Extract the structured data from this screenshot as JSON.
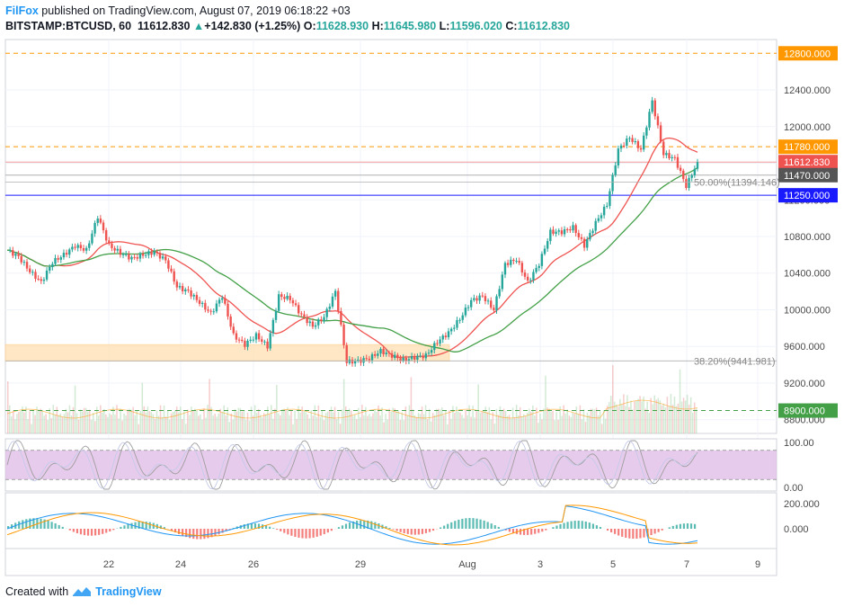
{
  "header": {
    "author": "FilFox",
    "published_text": "published on TradingView.com, August 07, 2019 06:18:22 +03",
    "symbol": "BITSTAMP:BTCUSD, 60",
    "last": "11612.830",
    "change_icon": "up-triangle-icon",
    "change": "+142.830 (+1.25%)",
    "o_label": "O:",
    "o": "11628.930",
    "h_label": "H:",
    "h": "11645.980",
    "l_label": "L:",
    "l": "11596.020",
    "c_label": "C:",
    "c": "11612.830"
  },
  "footer": {
    "created_with": "Created with",
    "brand": "TradingView",
    "logo_icon": "tradingview-logo-icon"
  },
  "colors": {
    "up": "#26a69a",
    "down": "#ef5350",
    "ma_fast": "#ef5350",
    "ma_slow": "#43a047",
    "resistance": "#ff9800",
    "support": "#43a047",
    "blue_line": "#3f51b5",
    "zone": "#ffe0b2",
    "stoch_band": "#e1bee7",
    "macd_line": "#2196f3",
    "signal_line": "#ff9800"
  },
  "chart_data": {
    "type": "candlestick",
    "price_axis": {
      "ylim": [
        8650,
        12950
      ],
      "ticks": [
        "12400.000",
        "12000.000",
        "11600.000",
        "11200.000",
        "10800.000",
        "10400.000",
        "10000.000",
        "9600.000",
        "9200.000",
        "8800.000"
      ]
    },
    "x_axis": {
      "tick_labels": [
        "22",
        "24",
        "26",
        "29",
        "Aug",
        "3",
        "5",
        "7",
        "9"
      ]
    },
    "price_labels": [
      {
        "text": "12800.000",
        "value": 12800,
        "color": "#ff9800"
      },
      {
        "text": "11780.000",
        "value": 11780,
        "color": "#ff9800"
      },
      {
        "text": "11612.830",
        "value": 11612.83,
        "color": "#ef5350"
      },
      {
        "text": "11470.000",
        "value": 11470,
        "color": "#555555"
      },
      {
        "text": "11250.000",
        "value": 11250,
        "color": "#1a1aff"
      },
      {
        "text": "8900.000",
        "value": 8900,
        "color": "#43a047"
      }
    ],
    "fib_levels": [
      {
        "text": "50.00%(11394.146)",
        "value": 11394.146
      },
      {
        "text": "38.20%(9441.981)",
        "value": 9441.981
      }
    ],
    "zone": {
      "from": 9440,
      "to": 9620
    },
    "closes": [
      10650,
      10580,
      10420,
      10300,
      10520,
      10600,
      10700,
      10650,
      11020,
      10700,
      10620,
      10560,
      10600,
      10630,
      10540,
      10250,
      10200,
      10080,
      9960,
      10150,
      9720,
      9620,
      9720,
      9600,
      10150,
      10120,
      9940,
      9820,
      9920,
      10200,
      9430,
      9440,
      9470,
      9550,
      9500,
      9450,
      9480,
      9500,
      9650,
      9750,
      9900,
      10100,
      10150,
      10000,
      10500,
      10550,
      10300,
      10500,
      10850,
      10850,
      10900,
      10700,
      10950,
      11150,
      11750,
      11880,
      11750,
      12280,
      11700,
      11650,
      11350,
      11612
    ],
    "indicators": {
      "stoch_rsi": {
        "ticks": [
          "100.00",
          "0.00"
        ],
        "band": [
          20,
          80
        ]
      },
      "macd": {
        "ticks": [
          "200.000",
          "0.000"
        ]
      }
    }
  }
}
